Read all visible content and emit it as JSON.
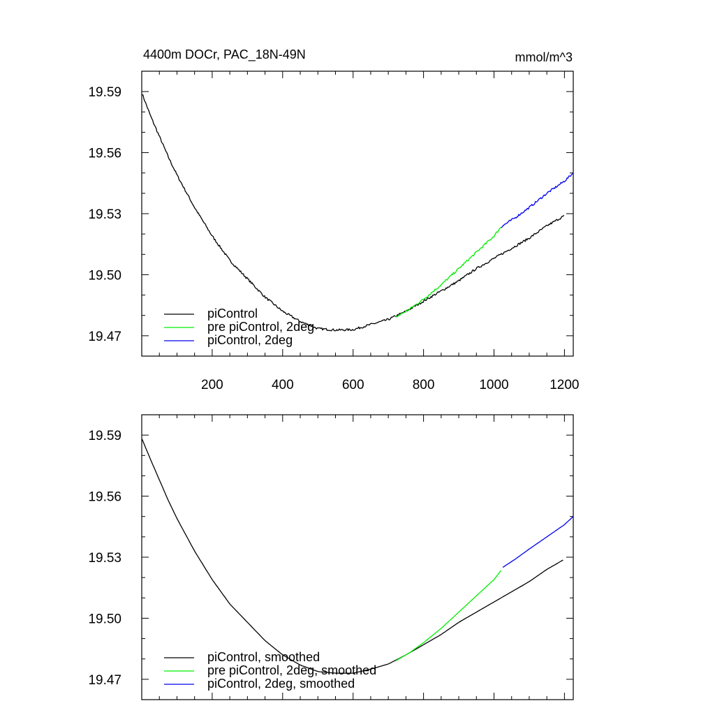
{
  "figure": {
    "title_left": "4400m DOCr, PAC_18N-49N",
    "title_right": "mmol/m^3"
  },
  "colors": {
    "piControl": "#000000",
    "pre_piControl_2deg": "#00ee00",
    "piControl_2deg": "#0000ee"
  },
  "chart_data": [
    {
      "type": "line",
      "title": "4400m DOCr, PAC_18N-49N",
      "units": "mmol/m^3",
      "xlim": [
        0,
        1225
      ],
      "ylim": [
        19.46,
        19.6
      ],
      "x_ticks": [
        200,
        400,
        600,
        800,
        1000,
        1200
      ],
      "x_tick_labels": [
        "200",
        "400",
        "600",
        "800",
        "1000",
        "1200"
      ],
      "y_ticks": [
        19.47,
        19.5,
        19.53,
        19.56,
        19.59
      ],
      "y_tick_labels": [
        "19.47",
        "19.50",
        "19.53",
        "19.56",
        "19.59"
      ],
      "legend_position": "bottom-left",
      "series": [
        {
          "name": "piControl",
          "color": "#000000",
          "noise": true,
          "points": [
            [
              1,
              19.589
            ],
            [
              25,
              19.578
            ],
            [
              50,
              19.568
            ],
            [
              75,
              19.558
            ],
            [
              100,
              19.549
            ],
            [
              150,
              19.533
            ],
            [
              200,
              19.519
            ],
            [
              250,
              19.507
            ],
            [
              300,
              19.498
            ],
            [
              350,
              19.489
            ],
            [
              400,
              19.482
            ],
            [
              450,
              19.477
            ],
            [
              500,
              19.4735
            ],
            [
              550,
              19.4728
            ],
            [
              600,
              19.473
            ],
            [
              650,
              19.4755
            ],
            [
              700,
              19.478
            ],
            [
              750,
              19.482
            ],
            [
              800,
              19.487
            ],
            [
              850,
              19.492
            ],
            [
              900,
              19.497
            ],
            [
              950,
              19.503
            ],
            [
              1000,
              19.508
            ],
            [
              1050,
              19.513
            ],
            [
              1100,
              19.518
            ],
            [
              1150,
              19.524
            ],
            [
              1200,
              19.529
            ]
          ]
        },
        {
          "name": "pre piControl, 2deg",
          "color": "#00ee00",
          "noise": true,
          "points": [
            [
              720,
              19.479
            ],
            [
              760,
              19.483
            ],
            [
              800,
              19.488
            ],
            [
              850,
              19.495
            ],
            [
              900,
              19.503
            ],
            [
              950,
              19.511
            ],
            [
              1000,
              19.519
            ],
            [
              1020,
              19.5235
            ]
          ]
        },
        {
          "name": "piControl, 2deg",
          "color": "#0000ee",
          "noise": true,
          "points": [
            [
              1020,
              19.5235
            ],
            [
              1060,
              19.528
            ],
            [
              1100,
              19.533
            ],
            [
              1150,
              19.54
            ],
            [
              1200,
              19.546
            ],
            [
              1225,
              19.55
            ]
          ]
        }
      ]
    },
    {
      "type": "line",
      "xlim": [
        0,
        1225
      ],
      "ylim": [
        19.46,
        19.6
      ],
      "x_ticks": [
        200,
        400,
        600,
        800,
        1000,
        1200
      ],
      "y_ticks": [
        19.47,
        19.5,
        19.53,
        19.56,
        19.59
      ],
      "y_tick_labels": [
        "19.47",
        "19.50",
        "19.53",
        "19.56",
        "19.59"
      ],
      "legend_position": "bottom-left",
      "series": [
        {
          "name": "piControl, smoothed",
          "color": "#000000",
          "noise": false,
          "points": [
            [
              1,
              19.588
            ],
            [
              25,
              19.578
            ],
            [
              50,
              19.568
            ],
            [
              75,
              19.558
            ],
            [
              100,
              19.549
            ],
            [
              150,
              19.533
            ],
            [
              200,
              19.519
            ],
            [
              250,
              19.507
            ],
            [
              300,
              19.498
            ],
            [
              350,
              19.489
            ],
            [
              400,
              19.482
            ],
            [
              450,
              19.477
            ],
            [
              500,
              19.4738
            ],
            [
              550,
              19.473
            ],
            [
              600,
              19.473
            ],
            [
              650,
              19.475
            ],
            [
              700,
              19.4775
            ],
            [
              750,
              19.482
            ],
            [
              800,
              19.487
            ],
            [
              850,
              19.492
            ],
            [
              900,
              19.498
            ],
            [
              950,
              19.503
            ],
            [
              1000,
              19.508
            ],
            [
              1050,
              19.513
            ],
            [
              1100,
              19.518
            ],
            [
              1150,
              19.524
            ],
            [
              1200,
              19.529
            ]
          ]
        },
        {
          "name": "pre piControl, 2deg, smoothed",
          "color": "#00ee00",
          "noise": false,
          "points": [
            [
              720,
              19.479
            ],
            [
              760,
              19.483
            ],
            [
              800,
              19.488
            ],
            [
              850,
              19.495
            ],
            [
              900,
              19.503
            ],
            [
              950,
              19.511
            ],
            [
              1000,
              19.519
            ],
            [
              1020,
              19.5235
            ]
          ]
        },
        {
          "name": "piControl, 2deg, smoothed",
          "color": "#0000ee",
          "noise": false,
          "points": [
            [
              1025,
              19.525
            ],
            [
              1060,
              19.529
            ],
            [
              1100,
              19.534
            ],
            [
              1150,
              19.54
            ],
            [
              1200,
              19.546
            ],
            [
              1225,
              19.55
            ]
          ]
        }
      ]
    }
  ]
}
